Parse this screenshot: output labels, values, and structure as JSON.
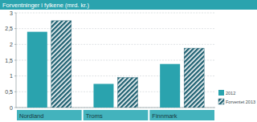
{
  "chart_data": {
    "type": "bar",
    "title": "Forventninger i fylkene (mrd. kr.)",
    "categories": [
      "Nordland",
      "Troms",
      "Finnmark"
    ],
    "series": [
      {
        "name": "2012",
        "color": "#2aa3ae",
        "values": [
          2.4,
          0.75,
          1.38
        ]
      },
      {
        "name": "Forventet 2013",
        "color": "#1d5f70",
        "values": [
          2.75,
          0.95,
          1.88
        ]
      }
    ],
    "ylim": [
      0,
      3
    ],
    "yticks": [
      0,
      {
        "value": 0.5,
        "label": "0,5"
      },
      1,
      {
        "value": 1.5,
        "label": "1,5"
      },
      2,
      {
        "value": 2.5,
        "label": "2,5"
      },
      3
    ],
    "grid": true,
    "legend": "bottom-right"
  }
}
